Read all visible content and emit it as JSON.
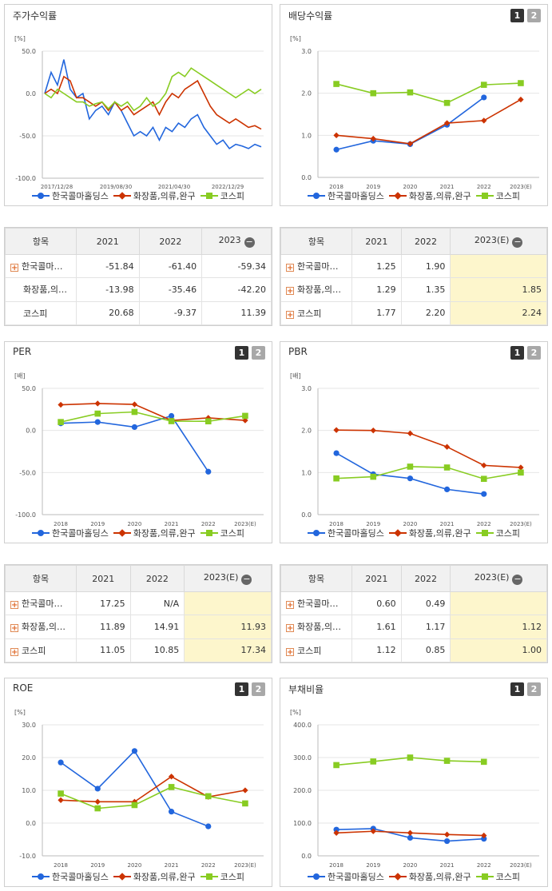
{
  "colors": {
    "blue": "#2266dd",
    "red": "#cc3300",
    "green": "#88cc22",
    "highlight": "#fdf6cc"
  },
  "legend": [
    "한국콜마홀딩스",
    "화장품,의류,완구",
    "코스피"
  ],
  "pages": [
    "1",
    "2"
  ],
  "panels": [
    {
      "title": "주가수익률",
      "has_pages": false,
      "chart_data": {
        "type": "line",
        "unit": "[%]",
        "ylim": [
          -100,
          50
        ],
        "yticks": [
          "50.0",
          "0.0",
          "-50.0",
          "-100.0"
        ],
        "xtick_labels": [
          "2017/12/28",
          "2019/08/30",
          "2021/04/30",
          "2022/12/29"
        ],
        "series": [
          {
            "name": "한국콜마홀딩스",
            "color": "#2266dd",
            "values": [
              0,
              25,
              10,
              40,
              5,
              -5,
              0,
              -30,
              -20,
              -15,
              -25,
              -10,
              -20,
              -35,
              -50,
              -45,
              -50,
              -40,
              -55,
              -40,
              -45,
              -35,
              -40,
              -30,
              -25,
              -40,
              -50,
              -60,
              -55,
              -65,
              -60,
              -62,
              -65,
              -60,
              -63
            ]
          },
          {
            "name": "화장품,의류,완구",
            "color": "#cc3300",
            "values": [
              0,
              5,
              0,
              20,
              15,
              -5,
              -5,
              -10,
              -15,
              -10,
              -20,
              -10,
              -20,
              -15,
              -25,
              -20,
              -15,
              -10,
              -25,
              -10,
              0,
              -5,
              5,
              10,
              15,
              0,
              -15,
              -25,
              -30,
              -35,
              -30,
              -35,
              -40,
              -38,
              -42
            ]
          },
          {
            "name": "코스피",
            "color": "#88cc22",
            "values": [
              0,
              -5,
              5,
              0,
              -5,
              -10,
              -10,
              -15,
              -12,
              -10,
              -18,
              -10,
              -15,
              -10,
              -20,
              -15,
              -5,
              -15,
              -10,
              0,
              20,
              25,
              20,
              30,
              25,
              20,
              15,
              10,
              5,
              0,
              -5,
              0,
              5,
              0,
              5
            ]
          }
        ]
      }
    },
    {
      "title": "배당수익률",
      "has_pages": true,
      "chart_data": {
        "type": "line",
        "unit": "[%]",
        "ylim": [
          0,
          3
        ],
        "yticks": [
          "3.0",
          "2.0",
          "1.0",
          "0.0"
        ],
        "categories": [
          "2018",
          "2019",
          "2020",
          "2021",
          "2022",
          "2023(E)"
        ],
        "series": [
          {
            "name": "한국콜마홀딩스",
            "color": "#2266dd",
            "marker": "circle",
            "values": [
              0.66,
              0.87,
              0.79,
              1.25,
              1.9,
              null
            ]
          },
          {
            "name": "화장품,의류,완구",
            "color": "#cc3300",
            "marker": "diamond",
            "values": [
              1.0,
              0.92,
              0.8,
              1.29,
              1.35,
              1.85
            ]
          },
          {
            "name": "코스피",
            "color": "#88cc22",
            "marker": "square",
            "values": [
              2.22,
              2.0,
              2.02,
              1.77,
              2.2,
              2.24
            ]
          }
        ]
      }
    },
    {
      "title": "PER",
      "has_pages": true,
      "chart_data": {
        "type": "line",
        "unit": "[배]",
        "ylim": [
          -100,
          50
        ],
        "yticks": [
          "50.0",
          "0.0",
          "-50.0",
          "-100.0"
        ],
        "categories": [
          "2018",
          "2019",
          "2020",
          "2021",
          "2022",
          "2023(E)"
        ],
        "series": [
          {
            "name": "한국콜마홀딩스",
            "color": "#2266dd",
            "marker": "circle",
            "values": [
              8.5,
              10.0,
              4.0,
              17.25,
              -49.0,
              null
            ]
          },
          {
            "name": "화장품,의류,완구",
            "color": "#cc3300",
            "marker": "diamond",
            "values": [
              30.5,
              32.0,
              31.0,
              11.89,
              14.91,
              11.93
            ]
          },
          {
            "name": "코스피",
            "color": "#88cc22",
            "marker": "square",
            "values": [
              10.0,
              20.0,
              22.0,
              11.05,
              10.85,
              17.34
            ]
          }
        ]
      }
    },
    {
      "title": "PBR",
      "has_pages": true,
      "chart_data": {
        "type": "line",
        "unit": "[배]",
        "ylim": [
          0,
          3
        ],
        "yticks": [
          "3.0",
          "2.0",
          "1.0",
          "0.0"
        ],
        "categories": [
          "2018",
          "2019",
          "2020",
          "2021",
          "2022",
          "2023(E)"
        ],
        "series": [
          {
            "name": "한국콜마홀딩스",
            "color": "#2266dd",
            "marker": "circle",
            "values": [
              1.46,
              0.96,
              0.86,
              0.6,
              0.49,
              null
            ]
          },
          {
            "name": "화장품,의류,완구",
            "color": "#cc3300",
            "marker": "diamond",
            "values": [
              2.01,
              2.0,
              1.93,
              1.61,
              1.17,
              1.12
            ]
          },
          {
            "name": "코스피",
            "color": "#88cc22",
            "marker": "square",
            "values": [
              0.86,
              0.9,
              1.14,
              1.12,
              0.85,
              1.0
            ]
          }
        ]
      }
    },
    {
      "title": "ROE",
      "has_pages": true,
      "chart_data": {
        "type": "line",
        "unit": "[%]",
        "ylim": [
          -10,
          30
        ],
        "yticks": [
          "30.0",
          "20.0",
          "10.0",
          "0.0",
          "-10.0"
        ],
        "categories": [
          "2018",
          "2019",
          "2020",
          "2021",
          "2022",
          "2023(E)"
        ],
        "series": [
          {
            "name": "한국콜마홀딩스",
            "color": "#2266dd",
            "marker": "circle",
            "values": [
              18.5,
              10.5,
              22.0,
              3.5,
              -1.0,
              null
            ]
          },
          {
            "name": "화장품,의류,완구",
            "color": "#cc3300",
            "marker": "diamond",
            "values": [
              7.0,
              6.5,
              6.5,
              14.2,
              8.0,
              10.0
            ]
          },
          {
            "name": "코스피",
            "color": "#88cc22",
            "marker": "square",
            "values": [
              9.0,
              4.5,
              5.5,
              11.0,
              8.2,
              6.0
            ]
          }
        ]
      }
    },
    {
      "title": "부채비율",
      "has_pages": true,
      "chart_data": {
        "type": "line",
        "unit": "[%]",
        "ylim": [
          0,
          400
        ],
        "yticks": [
          "400.0",
          "300.0",
          "200.0",
          "100.0",
          "0.0"
        ],
        "categories": [
          "2018",
          "2019",
          "2020",
          "2021",
          "2022",
          "2023(E)"
        ],
        "series": [
          {
            "name": "한국콜마홀딩스",
            "color": "#2266dd",
            "marker": "circle",
            "values": [
              80,
              83,
              55,
              45,
              52,
              null
            ]
          },
          {
            "name": "화장품,의류,완구",
            "color": "#cc3300",
            "marker": "diamond",
            "values": [
              70,
              75,
              70,
              65,
              62,
              null
            ]
          },
          {
            "name": "코스피",
            "color": "#88cc22",
            "marker": "square",
            "values": [
              277,
              288,
              300,
              290,
              287,
              null
            ]
          }
        ]
      }
    }
  ],
  "tables": [
    {
      "headers": [
        "항목",
        "2021",
        "2022",
        "2023"
      ],
      "header_minus": true,
      "highlight_last": false,
      "rows": [
        {
          "name": "한국콜마…",
          "plus": true,
          "values": [
            "-51.84",
            "-61.40",
            "-59.34"
          ]
        },
        {
          "name": "화장품,의…",
          "plus": false,
          "values": [
            "-13.98",
            "-35.46",
            "-42.20"
          ]
        },
        {
          "name": "코스피",
          "plus": false,
          "values": [
            "20.68",
            "-9.37",
            "11.39"
          ]
        }
      ]
    },
    {
      "headers": [
        "항목",
        "2021",
        "2022",
        "2023(E)"
      ],
      "header_minus": true,
      "highlight_last": true,
      "rows": [
        {
          "name": "한국콜마…",
          "plus": true,
          "values": [
            "1.25",
            "1.90",
            ""
          ]
        },
        {
          "name": "화장품,의…",
          "plus": true,
          "values": [
            "1.29",
            "1.35",
            "1.85"
          ]
        },
        {
          "name": "코스피",
          "plus": true,
          "values": [
            "1.77",
            "2.20",
            "2.24"
          ]
        }
      ]
    },
    {
      "headers": [
        "항목",
        "2021",
        "2022",
        "2023(E)"
      ],
      "header_minus": true,
      "highlight_last": true,
      "rows": [
        {
          "name": "한국콜마…",
          "plus": true,
          "values": [
            "17.25",
            "N/A",
            ""
          ]
        },
        {
          "name": "화장품,의…",
          "plus": true,
          "values": [
            "11.89",
            "14.91",
            "11.93"
          ]
        },
        {
          "name": "코스피",
          "plus": true,
          "values": [
            "11.05",
            "10.85",
            "17.34"
          ]
        }
      ]
    },
    {
      "headers": [
        "항목",
        "2021",
        "2022",
        "2023(E)"
      ],
      "header_minus": true,
      "highlight_last": true,
      "rows": [
        {
          "name": "한국콜마…",
          "plus": true,
          "values": [
            "0.60",
            "0.49",
            ""
          ]
        },
        {
          "name": "화장품,의…",
          "plus": true,
          "values": [
            "1.61",
            "1.17",
            "1.12"
          ]
        },
        {
          "name": "코스피",
          "plus": true,
          "values": [
            "1.12",
            "0.85",
            "1.00"
          ]
        }
      ]
    }
  ]
}
